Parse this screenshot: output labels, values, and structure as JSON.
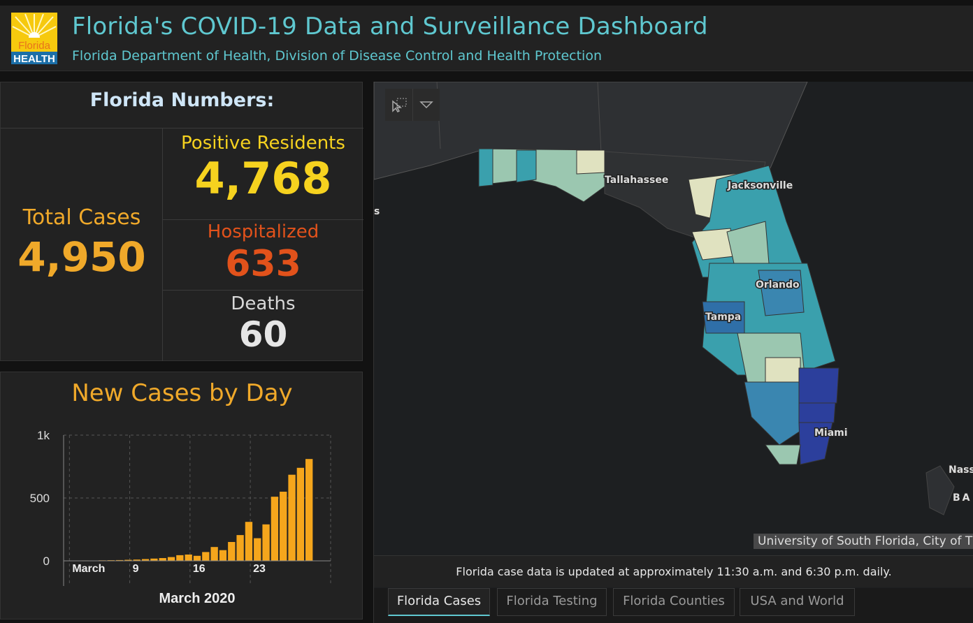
{
  "header": {
    "title": "Florida's COVID-19 Data and Surveillance Dashboard",
    "subtitle": "Florida Department of Health, Division of Disease Control and Health Protection",
    "logo_text_top": "Florida",
    "logo_text_bottom": "HEALTH"
  },
  "numbers": {
    "title": "Florida Numbers:",
    "total_label": "Total Cases",
    "total_value": "4,950",
    "positive_label": "Positive Residents",
    "positive_value": "4,768",
    "hospitalized_label": "Hospitalized",
    "hospitalized_value": "633",
    "deaths_label": "Deaths",
    "deaths_value": "60"
  },
  "chart": {
    "title": "New Cases by Day"
  },
  "chart_data": {
    "type": "bar",
    "title": "New Cases by Day",
    "xlabel": "March 2020",
    "ylabel": "",
    "ylim": [
      0,
      1000
    ],
    "ytick_labels": [
      "0",
      "500",
      "1k"
    ],
    "ytick_values": [
      0,
      500,
      1000
    ],
    "xtick_labels": [
      "March",
      "9",
      "16",
      "23"
    ],
    "xtick_days": [
      2,
      9,
      16,
      23
    ],
    "days": [
      1,
      2,
      3,
      4,
      5,
      6,
      7,
      8,
      9,
      10,
      11,
      12,
      13,
      14,
      15,
      16,
      17,
      18,
      19,
      20,
      21,
      22,
      23,
      24,
      25,
      26,
      27,
      28,
      29,
      30
    ],
    "values": [
      2,
      1,
      3,
      2,
      4,
      5,
      6,
      8,
      10,
      14,
      18,
      22,
      30,
      45,
      50,
      40,
      70,
      110,
      85,
      150,
      205,
      310,
      180,
      290,
      510,
      550,
      685,
      740,
      810,
      0
    ],
    "color": "#f5a61c"
  },
  "map": {
    "cities": [
      "Tallahassee",
      "Jacksonville",
      "Orlando",
      "Tampa",
      "Miami",
      "Nass",
      "BA"
    ],
    "edge_label": "s",
    "attribution": "University of South Florida, City of T",
    "update_note": "Florida case data is updated at approximately 11:30 a.m. and 6:30 p.m. daily.",
    "tabs": [
      "Florida Cases",
      "Florida Testing",
      "Florida Counties",
      "USA and World"
    ]
  },
  "colors": {
    "accent": "#5fc8d0",
    "orange": "#f0a92a",
    "yellow": "#f6d21f",
    "red": "#e2521b",
    "panel": "#222222"
  }
}
